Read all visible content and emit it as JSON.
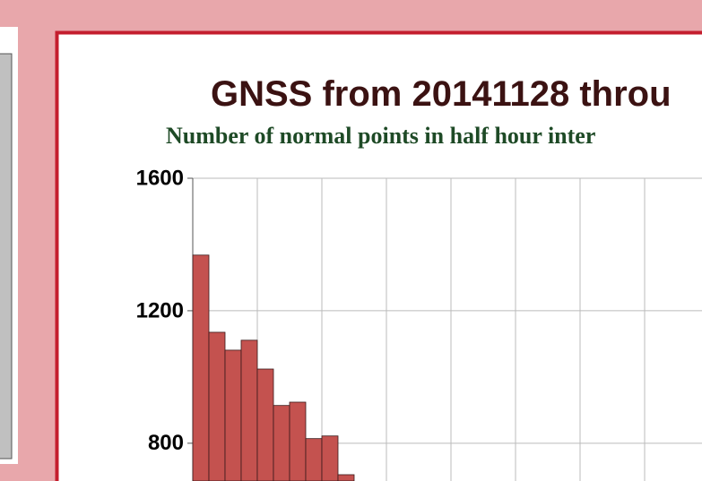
{
  "chart_data": {
    "type": "histogram",
    "title": "GNSS from 20141128 throu",
    "subtitle": "Number of normal points in half hour inter",
    "bins": [
      0,
      1,
      2,
      3,
      4,
      5,
      6,
      7,
      8,
      9,
      10
    ],
    "values": [
      1368,
      1135,
      1081,
      1111,
      1024,
      914,
      924,
      814,
      822,
      705
    ],
    "color": "#c4524f",
    "xlim": [
      0,
      31.5
    ],
    "xticks": [
      0,
      4,
      8,
      12,
      16,
      20,
      24,
      28
    ],
    "ylim": [
      686,
      1600
    ],
    "yticks": [
      1600,
      1200,
      800
    ],
    "grid": true
  }
}
